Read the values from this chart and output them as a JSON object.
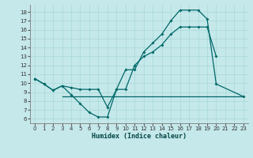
{
  "xlabel": "Humidex (Indice chaleur)",
  "bg_color": "#c5e8ea",
  "line_color": "#006868",
  "xlim": [
    -0.5,
    23.5
  ],
  "ylim": [
    5.5,
    18.8
  ],
  "yticks": [
    6,
    7,
    8,
    9,
    10,
    11,
    12,
    13,
    14,
    15,
    16,
    17,
    18
  ],
  "xticks": [
    0,
    1,
    2,
    3,
    4,
    5,
    6,
    7,
    8,
    9,
    10,
    11,
    12,
    13,
    14,
    15,
    16,
    17,
    18,
    19,
    20,
    21,
    22,
    23
  ],
  "line1_x": [
    0,
    1,
    2,
    3,
    4,
    5,
    6,
    7,
    8,
    9,
    10,
    11,
    12,
    13,
    14,
    15,
    16,
    17,
    18,
    19,
    20,
    23
  ],
  "line1_y": [
    10.5,
    9.9,
    9.2,
    9.7,
    8.7,
    7.7,
    6.7,
    6.2,
    6.2,
    9.3,
    11.5,
    11.5,
    13.5,
    14.5,
    15.5,
    17.0,
    18.2,
    18.2,
    18.2,
    17.2,
    9.9,
    8.5
  ],
  "line2_x": [
    0,
    1,
    2,
    3,
    4,
    5,
    6,
    7,
    8,
    9,
    10,
    11,
    12,
    13,
    14,
    15,
    16,
    17,
    18,
    19,
    20
  ],
  "line2_y": [
    10.5,
    9.9,
    9.2,
    9.7,
    9.5,
    9.3,
    9.3,
    9.3,
    7.3,
    9.3,
    9.3,
    12.0,
    13.0,
    13.5,
    14.3,
    15.5,
    16.3,
    16.3,
    16.3,
    16.3,
    13.0
  ],
  "line3_x": [
    3,
    23
  ],
  "line3_y": [
    8.5,
    8.5
  ]
}
